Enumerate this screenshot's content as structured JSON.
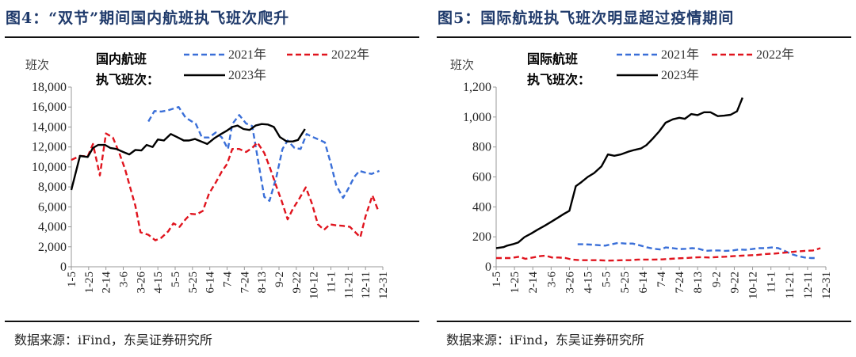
{
  "chart_data": [
    {
      "type": "line",
      "title": "图4：“双节”期间国内航班执飞班次爬升",
      "source": "数据来源：iFind，东吴证券研究所",
      "ylabel": "班次",
      "legend_title": [
        "国内航班",
        "执飞班次："
      ],
      "ylim": [
        0,
        18000
      ],
      "yticks": [
        0,
        2000,
        4000,
        6000,
        8000,
        10000,
        12000,
        14000,
        16000,
        18000
      ],
      "ytick_labels": [
        "0",
        "2,000",
        "4,000",
        "6,000",
        "8,000",
        "10,000",
        "12,000",
        "14,000",
        "16,000",
        "18,000"
      ],
      "x_unit": "days since 1-5",
      "xlim": [
        0,
        360
      ],
      "xtick_labels": [
        "1-5",
        "1-25",
        "2-14",
        "3-6",
        "3-26",
        "4-15",
        "5-5",
        "5-25",
        "6-14",
        "7-4",
        "7-24",
        "8-13",
        "9-2",
        "9-22",
        "10-12",
        "11-1",
        "11-21",
        "12-11",
        "12-31"
      ],
      "series": [
        {
          "name": "2021年",
          "color": "#3a6fd8",
          "dash": true,
          "points": [
            [
              89,
              14550
            ],
            [
              96,
              15600
            ],
            [
              104,
              15550
            ],
            [
              111,
              15650
            ],
            [
              124,
              16000
            ],
            [
              132,
              14950
            ],
            [
              144,
              14300
            ],
            [
              151,
              12950
            ],
            [
              159,
              12950
            ],
            [
              167,
              13450
            ],
            [
              174,
              12950
            ],
            [
              181,
              11800
            ],
            [
              186,
              14300
            ],
            [
              194,
              15200
            ],
            [
              202,
              14350
            ],
            [
              209,
              14100
            ],
            [
              217,
              10050
            ],
            [
              223,
              7000
            ],
            [
              229,
              6600
            ],
            [
              237,
              9000
            ],
            [
              244,
              11800
            ],
            [
              250,
              12650
            ],
            [
              258,
              11900
            ],
            [
              265,
              11800
            ],
            [
              272,
              13300
            ],
            [
              279,
              13000
            ],
            [
              287,
              12700
            ],
            [
              293,
              12450
            ],
            [
              300,
              10300
            ],
            [
              306,
              8200
            ],
            [
              314,
              6900
            ],
            [
              320,
              7800
            ],
            [
              327,
              9000
            ],
            [
              333,
              9600
            ],
            [
              341,
              9400
            ],
            [
              347,
              9300
            ],
            [
              356,
              9600
            ]
          ]
        },
        {
          "name": "2022年",
          "color": "#e0141e",
          "dash": true,
          "points": [
            [
              0,
              10700
            ],
            [
              10,
              11100
            ],
            [
              19,
              11050
            ],
            [
              25,
              12300
            ],
            [
              33,
              9150
            ],
            [
              40,
              13350
            ],
            [
              48,
              12950
            ],
            [
              55,
              11500
            ],
            [
              62,
              9800
            ],
            [
              68,
              7950
            ],
            [
              74,
              6100
            ],
            [
              80,
              3450
            ],
            [
              89,
              3200
            ],
            [
              97,
              2650
            ],
            [
              104,
              2900
            ],
            [
              112,
              3550
            ],
            [
              118,
              4350
            ],
            [
              125,
              4000
            ],
            [
              132,
              4750
            ],
            [
              138,
              5300
            ],
            [
              145,
              5250
            ],
            [
              152,
              5600
            ],
            [
              159,
              7300
            ],
            [
              167,
              8450
            ],
            [
              174,
              9550
            ],
            [
              180,
              10300
            ],
            [
              186,
              11800
            ],
            [
              194,
              11800
            ],
            [
              202,
              11500
            ],
            [
              209,
              11900
            ],
            [
              215,
              12450
            ],
            [
              223,
              11400
            ],
            [
              229,
              10050
            ],
            [
              237,
              8050
            ],
            [
              243,
              6600
            ],
            [
              250,
              4750
            ],
            [
              256,
              5800
            ],
            [
              264,
              6900
            ],
            [
              271,
              7950
            ],
            [
              278,
              6350
            ],
            [
              285,
              4250
            ],
            [
              292,
              3700
            ],
            [
              299,
              4250
            ],
            [
              306,
              4150
            ],
            [
              314,
              4100
            ],
            [
              322,
              4000
            ],
            [
              334,
              2950
            ],
            [
              340,
              5050
            ],
            [
              348,
              7150
            ],
            [
              355,
              5550
            ]
          ]
        },
        {
          "name": "2023年",
          "color": "#000000",
          "dash": false,
          "points": [
            [
              0,
              7700
            ],
            [
              10,
              11100
            ],
            [
              19,
              11000
            ],
            [
              25,
              11900
            ],
            [
              31,
              12200
            ],
            [
              39,
              12200
            ],
            [
              45,
              11900
            ],
            [
              52,
              11800
            ],
            [
              60,
              11500
            ],
            [
              67,
              11250
            ],
            [
              74,
              11700
            ],
            [
              81,
              11650
            ],
            [
              87,
              12200
            ],
            [
              94,
              12000
            ],
            [
              100,
              12750
            ],
            [
              107,
              12650
            ],
            [
              115,
              13300
            ],
            [
              122,
              13000
            ],
            [
              130,
              12650
            ],
            [
              136,
              12650
            ],
            [
              143,
              12800
            ],
            [
              150,
              12550
            ],
            [
              157,
              12300
            ],
            [
              165,
              12850
            ],
            [
              173,
              13300
            ],
            [
              180,
              13650
            ],
            [
              186,
              14000
            ],
            [
              192,
              14150
            ],
            [
              199,
              13800
            ],
            [
              206,
              13700
            ],
            [
              213,
              14150
            ],
            [
              220,
              14300
            ],
            [
              227,
              14250
            ],
            [
              234,
              14000
            ],
            [
              241,
              13000
            ],
            [
              249,
              12550
            ],
            [
              256,
              12550
            ],
            [
              262,
              12700
            ],
            [
              270,
              13800
            ]
          ]
        }
      ]
    },
    {
      "type": "line",
      "title": "图5：国际航班执飞班次明显超过疫情期间",
      "source": "数据来源：iFind，东吴证券研究所",
      "ylabel": "班次",
      "legend_title": [
        "国际航班",
        "执飞班次："
      ],
      "ylim": [
        0,
        1200
      ],
      "yticks": [
        0,
        200,
        400,
        600,
        800,
        1000,
        1200
      ],
      "ytick_labels": [
        "0",
        "200",
        "400",
        "600",
        "800",
        "1,000",
        "1,200"
      ],
      "x_unit": "days since 1-5",
      "xlim": [
        0,
        360
      ],
      "xtick_labels": [
        "1-5",
        "1-25",
        "2-14",
        "3-6",
        "3-26",
        "4-15",
        "5-5",
        "5-25",
        "6-14",
        "7-4",
        "7-24",
        "8-13",
        "9-2",
        "9-22",
        "10-12",
        "11-1",
        "11-21",
        "12-11",
        "12-31"
      ],
      "series": [
        {
          "name": "2021年",
          "color": "#3a6fd8",
          "dash": true,
          "points": [
            [
              89,
              150
            ],
            [
              96,
              150
            ],
            [
              103,
              148
            ],
            [
              110,
              145
            ],
            [
              119,
              141
            ],
            [
              126,
              150
            ],
            [
              133,
              159
            ],
            [
              141,
              155
            ],
            [
              149,
              155
            ],
            [
              158,
              141
            ],
            [
              165,
              129
            ],
            [
              172,
              120
            ],
            [
              180,
              115
            ],
            [
              185,
              129
            ],
            [
              193,
              124
            ],
            [
              200,
              118
            ],
            [
              207,
              120
            ],
            [
              214,
              124
            ],
            [
              221,
              120
            ],
            [
              229,
              106
            ],
            [
              236,
              109
            ],
            [
              243,
              109
            ],
            [
              250,
              106
            ],
            [
              257,
              108
            ],
            [
              265,
              115
            ],
            [
              272,
              113
            ],
            [
              279,
              118
            ],
            [
              286,
              124
            ],
            [
              294,
              124
            ],
            [
              301,
              129
            ],
            [
              308,
              124
            ],
            [
              315,
              106
            ],
            [
              322,
              85
            ],
            [
              330,
              71
            ],
            [
              337,
              62
            ],
            [
              344,
              58
            ],
            [
              351,
              58
            ]
          ]
        },
        {
          "name": "2022年",
          "color": "#e0141e",
          "dash": true,
          "points": [
            [
              0,
              58
            ],
            [
              8,
              58
            ],
            [
              16,
              58
            ],
            [
              25,
              67
            ],
            [
              32,
              53
            ],
            [
              40,
              62
            ],
            [
              48,
              71
            ],
            [
              54,
              74
            ],
            [
              61,
              62
            ],
            [
              68,
              62
            ],
            [
              76,
              58
            ],
            [
              83,
              48
            ],
            [
              92,
              44
            ],
            [
              103,
              44
            ],
            [
              112,
              44
            ],
            [
              120,
              41
            ],
            [
              129,
              42
            ],
            [
              138,
              44
            ],
            [
              146,
              44
            ],
            [
              155,
              48
            ],
            [
              164,
              48
            ],
            [
              172,
              48
            ],
            [
              181,
              49
            ],
            [
              190,
              53
            ],
            [
              198,
              56
            ],
            [
              207,
              58
            ],
            [
              216,
              62
            ],
            [
              224,
              64
            ],
            [
              233,
              62
            ],
            [
              242,
              65
            ],
            [
              250,
              67
            ],
            [
              259,
              71
            ],
            [
              268,
              74
            ],
            [
              276,
              76
            ],
            [
              285,
              79
            ],
            [
              294,
              85
            ],
            [
              303,
              88
            ],
            [
              311,
              92
            ],
            [
              320,
              97
            ],
            [
              328,
              102
            ],
            [
              337,
              106
            ],
            [
              346,
              109
            ],
            [
              354,
              124
            ]
          ]
        },
        {
          "name": "2023年",
          "color": "#000000",
          "dash": false,
          "points": [
            [
              0,
              124
            ],
            [
              8,
              131
            ],
            [
              12,
              141
            ],
            [
              18,
              150
            ],
            [
              24,
              162
            ],
            [
              31,
              198
            ],
            [
              38,
              221
            ],
            [
              45,
              247
            ],
            [
              53,
              274
            ],
            [
              60,
              300
            ],
            [
              67,
              326
            ],
            [
              74,
              353
            ],
            [
              80,
              374
            ],
            [
              87,
              538
            ],
            [
              93,
              565
            ],
            [
              100,
              600
            ],
            [
              107,
              626
            ],
            [
              115,
              671
            ],
            [
              122,
              750
            ],
            [
              129,
              741
            ],
            [
              136,
              750
            ],
            [
              144,
              768
            ],
            [
              151,
              780
            ],
            [
              158,
              790
            ],
            [
              164,
              812
            ],
            [
              171,
              856
            ],
            [
              178,
              904
            ],
            [
              185,
              962
            ],
            [
              193,
              985
            ],
            [
              200,
              995
            ],
            [
              206,
              988
            ],
            [
              213,
              1020
            ],
            [
              220,
              1013
            ],
            [
              227,
              1032
            ],
            [
              234,
              1032
            ],
            [
              242,
              1006
            ],
            [
              249,
              1009
            ],
            [
              256,
              1015
            ],
            [
              263,
              1038
            ],
            [
              269,
              1129
            ]
          ]
        }
      ]
    }
  ]
}
